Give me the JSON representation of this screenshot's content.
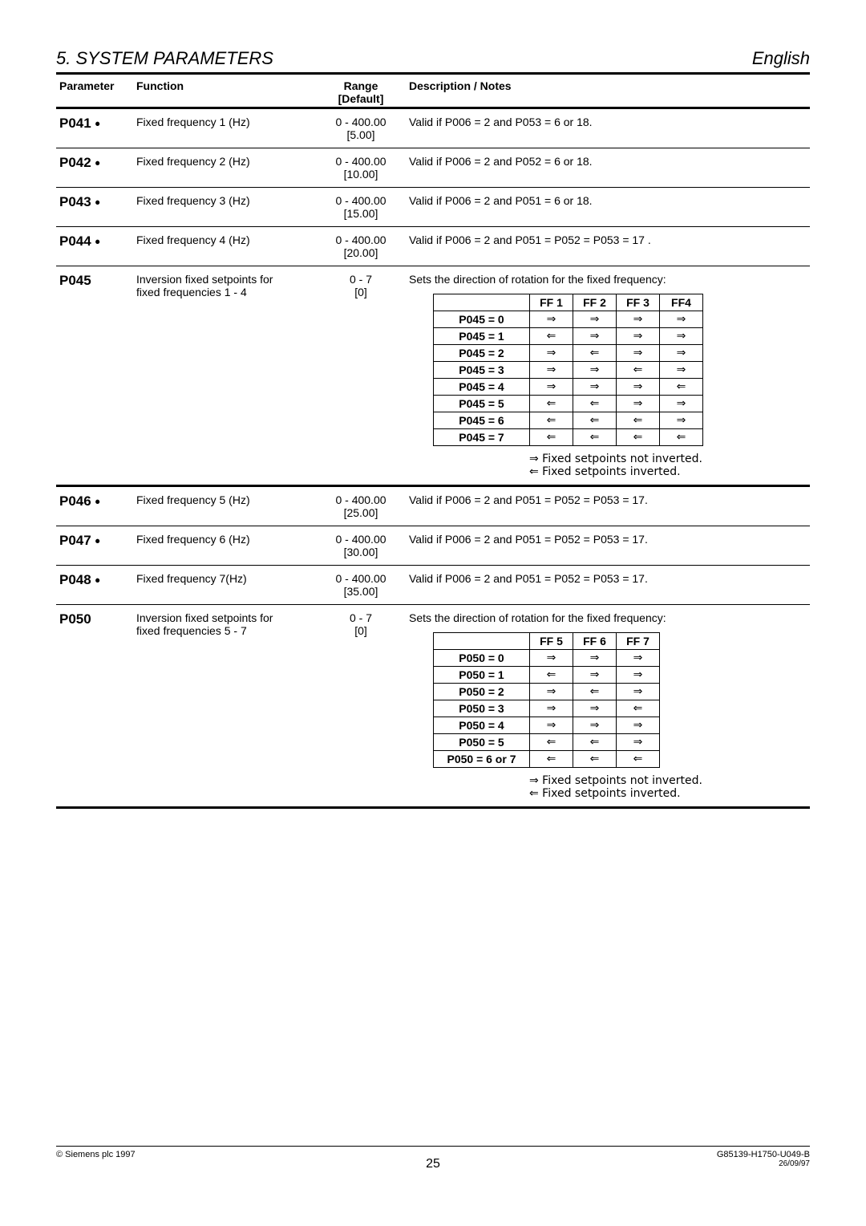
{
  "header": {
    "section": "5.  SYSTEM PARAMETERS",
    "language": "English"
  },
  "columns": {
    "parameter": "Parameter",
    "function": "Function",
    "range": "Range",
    "default": "[Default]",
    "description": "Description / Notes"
  },
  "rows": [
    {
      "param": "P041",
      "dot": true,
      "function": "Fixed frequency 1 (Hz)",
      "range": "0 - 400.00",
      "default": "[5.00]",
      "desc": "Valid if P006 = 2 and P053 = 6 or 18."
    },
    {
      "param": "P042",
      "dot": true,
      "function": "Fixed frequency 2 (Hz)",
      "range": "0 - 400.00",
      "default": "[10.00]",
      "desc": "Valid if P006 = 2 and P052 = 6 or 18."
    },
    {
      "param": "P043",
      "dot": true,
      "function": "Fixed frequency 3 (Hz)",
      "range": "0 - 400.00",
      "default": "[15.00]",
      "desc": "Valid if P006 = 2 and P051 = 6 or 18."
    },
    {
      "param": "P044",
      "dot": true,
      "function": "Fixed frequency 4 (Hz)",
      "range": "0 - 400.00",
      "default": "[20.00]",
      "desc": "Valid if P006 = 2 and P051 = P052 = P053 = 17  ."
    }
  ],
  "p045": {
    "param": "P045",
    "function1": "Inversion fixed setpoints for",
    "function2": "fixed frequencies 1 - 4",
    "range": "0 - 7",
    "default": "[0]",
    "desc": "Sets the direction of rotation for the fixed frequency:",
    "headers": [
      "",
      "FF 1",
      "FF 2",
      "FF 3",
      "FF4"
    ],
    "tableRows": [
      {
        "label": "P045 = 0",
        "cells": [
          "⇒",
          "⇒",
          "⇒",
          "⇒"
        ]
      },
      {
        "label": "P045 = 1",
        "cells": [
          "⇐",
          "⇒",
          "⇒",
          "⇒"
        ]
      },
      {
        "label": "P045 = 2",
        "cells": [
          "⇒",
          "⇐",
          "⇒",
          "⇒"
        ]
      },
      {
        "label": "P045 = 3",
        "cells": [
          "⇒",
          "⇒",
          "⇐",
          "⇒"
        ]
      },
      {
        "label": "P045 = 4",
        "cells": [
          "⇒",
          "⇒",
          "⇒",
          "⇐"
        ]
      },
      {
        "label": "P045 = 5",
        "cells": [
          "⇐",
          "⇐",
          "⇒",
          "⇒"
        ]
      },
      {
        "label": "P045 = 6",
        "cells": [
          "⇐",
          "⇐",
          "⇐",
          "⇒"
        ]
      },
      {
        "label": "P045 =  7",
        "cells": [
          "⇐",
          "⇐",
          "⇐",
          "⇐"
        ]
      }
    ],
    "legend1": "⇒ Fixed setpoints not inverted.",
    "legend2": "⇐ Fixed setpoints inverted."
  },
  "rows2": [
    {
      "param": "P046",
      "dot": true,
      "function": "Fixed frequency 5 (Hz)",
      "range": "0 - 400.00",
      "default": "[25.00]",
      "desc": "Valid if P006 = 2 and P051 = P052 = P053 = 17."
    },
    {
      "param": "P047",
      "dot": true,
      "function": "Fixed frequency 6 (Hz)",
      "range": "0 - 400.00",
      "default": "[30.00]",
      "desc": "Valid if P006 = 2 and P051 = P052 = P053 = 17."
    },
    {
      "param": "P048",
      "dot": true,
      "function": "Fixed frequency 7(Hz)",
      "range": "0 - 400.00",
      "default": "[35.00]",
      "desc": "Valid if P006 = 2 and P051 = P052 = P053 = 17."
    }
  ],
  "p050": {
    "param": "P050",
    "function1": "Inversion fixed setpoints for",
    "function2": "fixed frequencies 5 - 7",
    "range": "0 - 7",
    "default": "[0]",
    "desc": "Sets the direction of rotation for the fixed frequency:",
    "headers": [
      "",
      "FF 5",
      "FF 6",
      "FF 7"
    ],
    "tableRows": [
      {
        "label": "P050 = 0",
        "cells": [
          "⇒",
          "⇒",
          "⇒"
        ]
      },
      {
        "label": "P050 = 1",
        "cells": [
          "⇐",
          "⇒",
          "⇒"
        ]
      },
      {
        "label": "P050 = 2",
        "cells": [
          "⇒",
          "⇐",
          "⇒"
        ]
      },
      {
        "label": "P050 = 3",
        "cells": [
          "⇒",
          "⇒",
          "⇐"
        ]
      },
      {
        "label": "P050 = 4",
        "cells": [
          "⇒",
          "⇒",
          "⇒"
        ]
      },
      {
        "label": "P050 = 5",
        "cells": [
          "⇐",
          "⇐",
          "⇒"
        ]
      },
      {
        "label": "P050 = 6 or 7",
        "cells": [
          "⇐",
          "⇐",
          "⇐"
        ]
      }
    ],
    "legend1": "⇒ Fixed setpoints not inverted.",
    "legend2": "⇐ Fixed setpoints inverted."
  },
  "footer": {
    "copyright": "© Siemens plc 1997",
    "doc": "G85139-H1750-U049-B",
    "date": "26/09/97",
    "page": "25"
  }
}
